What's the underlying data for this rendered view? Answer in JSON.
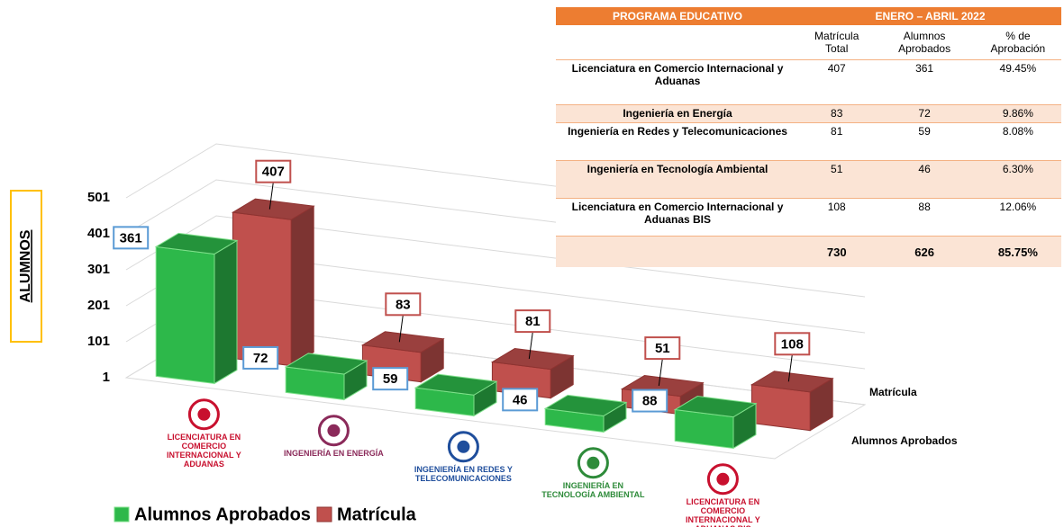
{
  "chart_data": {
    "type": "bar3d",
    "y_label": "ALUMNOS",
    "categories": [
      "LICENCIATURA EN COMERCIO INTERNACIONAL Y ADUANAS",
      "INGENIERÍA EN ENERGÍA",
      "INGENIERÍA EN REDES Y TELECOMUNICACIONES",
      "INGENIERÍA EN TECNOLOGÍA AMBIENTAL",
      "LICENCIATURA EN COMERCIO INTERNACIONAL Y ADUANAS BIS"
    ],
    "category_colors": [
      "#c8102e",
      "#8b2a5a",
      "#1f4e9c",
      "#2e8b3a",
      "#c8102e"
    ],
    "series": [
      {
        "name": "Alumnos Aprobados",
        "color": "#2db84a",
        "values": [
          361,
          72,
          59,
          46,
          88
        ]
      },
      {
        "name": "Matrícula",
        "color": "#c0504d",
        "values": [
          407,
          83,
          81,
          51,
          108
        ]
      }
    ],
    "ylim": [
      1,
      501
    ],
    "yticks": [
      1,
      101,
      201,
      301,
      401,
      501
    ],
    "grid": true,
    "legend": "bottom-left"
  },
  "table": {
    "header": [
      "PROGRAMA EDUCATIVO",
      "ENERO – ABRIL 2022"
    ],
    "columns": [
      "Matrícula Total",
      "Alumnos Aprobados",
      "% de Aprobación"
    ],
    "rows": [
      [
        "Licenciatura en Comercio Internacional y Aduanas",
        "407",
        "361",
        "49.45%"
      ],
      [
        "Ingeniería en Energía",
        "83",
        "72",
        "9.86%"
      ],
      [
        "Ingeniería en Redes y Telecomunicaciones",
        "81",
        "59",
        "8.08%"
      ],
      [
        "Ingeniería en Tecnología Ambiental",
        "51",
        "46",
        "6.30%"
      ],
      [
        "Licenciatura en Comercio Internacional y Aduanas BIS",
        "108",
        "88",
        "12.06%"
      ]
    ],
    "total": [
      "730",
      "626",
      "85.75%"
    ]
  }
}
